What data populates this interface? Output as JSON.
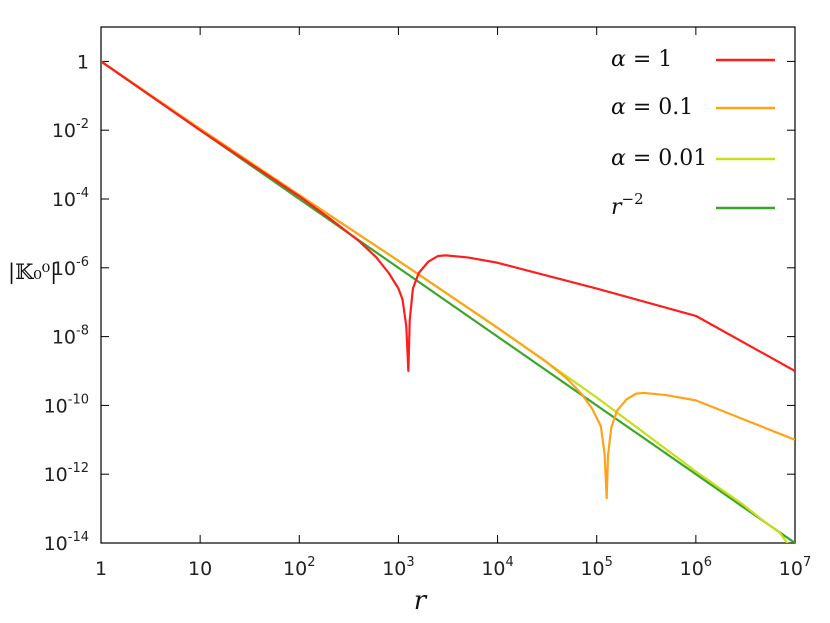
{
  "chart_data": {
    "type": "line",
    "title": "",
    "xlabel": "r",
    "ylabel": "|𝕂₀⁰|",
    "x_scale": "log",
    "y_scale": "log",
    "xlim": [
      1,
      10000000
    ],
    "ylim": [
      1e-14,
      10
    ],
    "grid": false,
    "legend_position": "top-right",
    "x_ticks": [
      {
        "value": 1,
        "base": "1",
        "exp": ""
      },
      {
        "value": 10,
        "base": "10",
        "exp": ""
      },
      {
        "value": 100,
        "base": "10",
        "exp": "2"
      },
      {
        "value": 1000,
        "base": "10",
        "exp": "3"
      },
      {
        "value": 10000,
        "base": "10",
        "exp": "4"
      },
      {
        "value": 100000,
        "base": "10",
        "exp": "5"
      },
      {
        "value": 1000000,
        "base": "10",
        "exp": "6"
      },
      {
        "value": 10000000,
        "base": "10",
        "exp": "7"
      }
    ],
    "y_ticks": [
      {
        "value": 1,
        "base": "1",
        "exp": ""
      },
      {
        "value": 0.01,
        "base": "10",
        "exp": "-2"
      },
      {
        "value": 0.0001,
        "base": "10",
        "exp": "-4"
      },
      {
        "value": 1e-06,
        "base": "10",
        "exp": "-6"
      },
      {
        "value": 1e-08,
        "base": "10",
        "exp": "-8"
      },
      {
        "value": 1e-10,
        "base": "10",
        "exp": "-10"
      },
      {
        "value": 1e-12,
        "base": "10",
        "exp": "-12"
      },
      {
        "value": 1e-14,
        "base": "10",
        "exp": "-14"
      }
    ],
    "series": [
      {
        "name": "α = 1",
        "legend_math": "α",
        "legend_rest": " = 1",
        "color": "#ff1e1e",
        "x": [
          1,
          10,
          100,
          200,
          400,
          600,
          800,
          1000,
          1100,
          1200,
          1260,
          1300,
          1400,
          1600,
          2000,
          2500,
          3000,
          5000,
          10000,
          100000,
          1000000,
          10000000
        ],
        "y": [
          1,
          0.01,
          0.00012,
          2.8e-05,
          6e-06,
          2e-06,
          7e-07,
          2.5e-07,
          1.2e-07,
          2e-08,
          1e-09,
          3e-08,
          2.5e-07,
          7e-07,
          1.5e-06,
          2.2e-06,
          2.3e-06,
          2e-06,
          1.4e-06,
          2.5e-07,
          4e-08,
          1e-09
        ]
      },
      {
        "name": "α = 0.1",
        "legend_math": "α",
        "legend_rest": " = 0.1",
        "color": "#ffa31a",
        "x": [
          1,
          10,
          100,
          1000,
          10000,
          30000,
          50000,
          70000,
          90000,
          110000,
          120000,
          126000,
          130000,
          140000,
          160000,
          200000,
          250000,
          300000,
          500000,
          1000000,
          10000000
        ],
        "y": [
          1,
          0.011,
          0.00013,
          1.6e-06,
          1.8e-08,
          2e-09,
          6e-10,
          2.2e-10,
          8e-11,
          2.5e-11,
          4e-12,
          2e-13,
          3.5e-12,
          2.2e-11,
          7e-11,
          1.5e-10,
          2.2e-10,
          2.3e-10,
          2e-10,
          1.4e-10,
          1e-11
        ]
      },
      {
        "name": "α = 0.01",
        "legend_math": "α",
        "legend_rest": " = 0.01",
        "color": "#c8de1a",
        "x": [
          1,
          10,
          100,
          1000,
          10000,
          100000,
          1000000,
          3000000,
          5000000,
          7000000,
          10000000
        ],
        "y": [
          1,
          0.011,
          0.00013,
          1.6e-06,
          1.8e-08,
          1.7e-10,
          1.2e-12,
          1.3e-13,
          4e-14,
          2e-14,
          5e-15
        ]
      },
      {
        "name": "r⁻²",
        "legend_math": "r",
        "legend_rest": "−2",
        "color": "#3aa628",
        "x": [
          1,
          10000000
        ],
        "y": [
          1,
          1e-14
        ]
      }
    ]
  }
}
